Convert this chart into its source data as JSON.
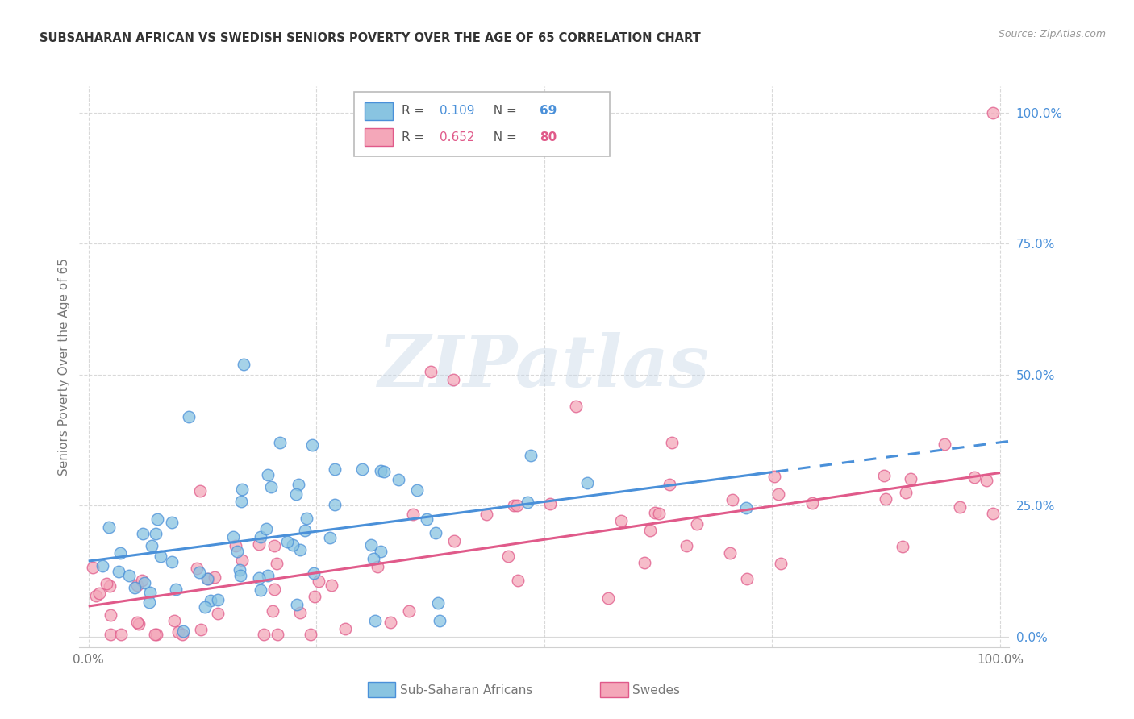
{
  "title": "SUBSAHARAN AFRICAN VS SWEDISH SENIORS POVERTY OVER THE AGE OF 65 CORRELATION CHART",
  "source": "Source: ZipAtlas.com",
  "ylabel": "Seniors Poverty Over the Age of 65",
  "blue_color": "#89c4e1",
  "pink_color": "#f4a7b9",
  "blue_line_color": "#4a90d9",
  "pink_line_color": "#e05a8a",
  "blue_text_color": "#4a90d9",
  "pink_text_color": "#e05a8a",
  "right_axis_color": "#4a90d9",
  "R_blue": 0.109,
  "N_blue": 69,
  "R_pink": 0.652,
  "N_pink": 80,
  "watermark": "ZIPatlas",
  "grid_color": "#d0d0d0",
  "title_color": "#333333",
  "source_color": "#999999",
  "label_color": "#777777"
}
